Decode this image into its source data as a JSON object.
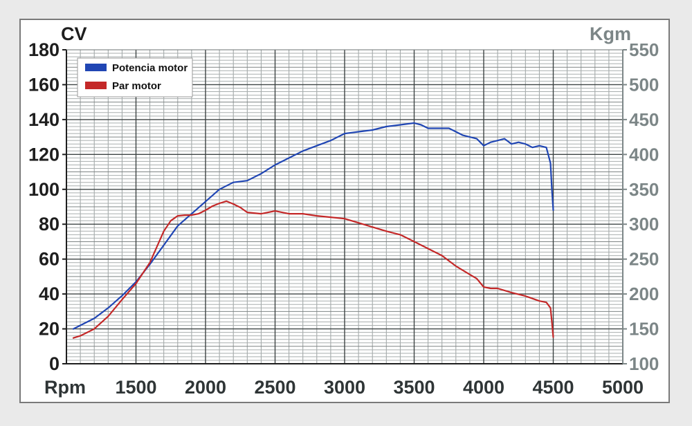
{
  "chart_data": {
    "type": "line",
    "xlabel": "Rpm",
    "ylabel_left": "CV",
    "ylabel_right": "Kgm",
    "xlim": [
      1000,
      5000
    ],
    "ylim_left": [
      0,
      180
    ],
    "ylim_right": [
      100,
      550
    ],
    "x_ticks": [
      "1500",
      "2000",
      "2500",
      "3000",
      "3500",
      "4000",
      "4500",
      "5000"
    ],
    "y_left_ticks": [
      "0",
      "20",
      "40",
      "60",
      "80",
      "100",
      "120",
      "140",
      "160",
      "180"
    ],
    "y_right_ticks": [
      "100",
      "150",
      "200",
      "250",
      "300",
      "350",
      "400",
      "450",
      "500",
      "550"
    ],
    "grid": true,
    "legend_position": "top-left",
    "series": [
      {
        "name": "Potencia motor",
        "color": "#2046b4",
        "axis": "left",
        "x": [
          1050,
          1100,
          1200,
          1300,
          1400,
          1500,
          1600,
          1700,
          1800,
          1900,
          2000,
          2100,
          2200,
          2300,
          2400,
          2500,
          2600,
          2700,
          2800,
          2900,
          3000,
          3100,
          3200,
          3300,
          3400,
          3500,
          3550,
          3600,
          3650,
          3700,
          3750,
          3800,
          3850,
          3900,
          3950,
          4000,
          4050,
          4100,
          4150,
          4200,
          4250,
          4300,
          4350,
          4400,
          4450,
          4480,
          4490,
          4500
        ],
        "y": [
          20,
          22,
          26,
          32,
          39,
          47,
          57,
          68,
          79,
          86,
          93,
          100,
          104,
          105,
          109,
          114,
          118,
          122,
          125,
          128,
          132,
          133,
          134,
          136,
          137,
          138,
          137,
          135,
          135,
          135,
          135,
          133,
          131,
          130,
          129,
          125,
          127,
          128,
          129,
          126,
          127,
          126,
          124,
          125,
          124,
          115,
          100,
          88
        ]
      },
      {
        "name": "Par motor",
        "color": "#c42828",
        "axis": "right",
        "x": [
          1050,
          1100,
          1150,
          1200,
          1300,
          1400,
          1500,
          1600,
          1700,
          1750,
          1800,
          1850,
          1900,
          1950,
          2000,
          2050,
          2100,
          2150,
          2200,
          2250,
          2300,
          2400,
          2500,
          2600,
          2700,
          2800,
          2900,
          3000,
          3100,
          3200,
          3300,
          3400,
          3500,
          3600,
          3700,
          3800,
          3900,
          3950,
          4000,
          4050,
          4100,
          4200,
          4300,
          4400,
          4450,
          4480,
          4490,
          4500
        ],
        "y": [
          137,
          140,
          145,
          150,
          168,
          192,
          215,
          245,
          290,
          305,
          312,
          313,
          313,
          315,
          320,
          326,
          330,
          333,
          329,
          324,
          317,
          315,
          319,
          315,
          315,
          312,
          310,
          308,
          302,
          296,
          290,
          285,
          275,
          265,
          255,
          240,
          228,
          222,
          210,
          208,
          208,
          202,
          197,
          190,
          188,
          180,
          160,
          138
        ]
      }
    ]
  }
}
